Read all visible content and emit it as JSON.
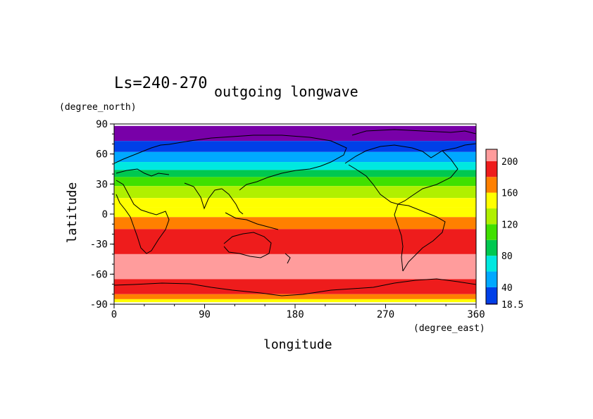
{
  "chart_data": {
    "type": "heatmap",
    "title": "outgoing longwave",
    "subtitle": "Ls=240-270",
    "xlabel": "longitude",
    "ylabel": "latitude",
    "x_unit": "(degree_east)",
    "y_unit": "(degree_north)",
    "xlim": [
      0,
      360
    ],
    "ylim": [
      -90,
      90
    ],
    "x_ticks": [
      "0",
      "90",
      "180",
      "270",
      "360"
    ],
    "y_ticks": [
      "90",
      "60",
      "30",
      "0",
      "-30",
      "-60",
      "-90"
    ],
    "colorbar": {
      "levels": [
        18.5,
        20,
        40,
        60,
        80,
        100,
        120,
        140,
        160,
        180,
        200,
        215
      ],
      "colors": [
        "#0000a8",
        "#0040e8",
        "#00a8ff",
        "#00e8e0",
        "#00c850",
        "#40e000",
        "#b0f000",
        "#ffff00",
        "#ff8000",
        "#ee1c1c",
        "#ff9c9c"
      ],
      "tick_labels": [
        "18.5",
        "40",
        "80",
        "120",
        "160",
        "200"
      ],
      "tick_values": [
        18.5,
        40,
        80,
        120,
        160,
        200
      ]
    },
    "zonal_bands": [
      {
        "lat_top": 88,
        "lat_bottom": 73,
        "value": 10
      },
      {
        "lat_top": 73,
        "lat_bottom": 62,
        "value": 25
      },
      {
        "lat_top": 62,
        "lat_bottom": 52,
        "value": 50
      },
      {
        "lat_top": 52,
        "lat_bottom": 44,
        "value": 70
      },
      {
        "lat_top": 44,
        "lat_bottom": 37,
        "value": 90
      },
      {
        "lat_top": 37,
        "lat_bottom": 28,
        "value": 110
      },
      {
        "lat_top": 28,
        "lat_bottom": 16,
        "value": 130
      },
      {
        "lat_top": 16,
        "lat_bottom": 7,
        "value": 150
      },
      {
        "lat_top": 7,
        "lat_bottom": -3,
        "value": 150
      },
      {
        "lat_top": -3,
        "lat_bottom": -15,
        "value": 170
      },
      {
        "lat_top": -15,
        "lat_bottom": -40,
        "value": 190
      },
      {
        "lat_top": -40,
        "lat_bottom": -65,
        "value": 205
      },
      {
        "lat_top": -65,
        "lat_bottom": -80,
        "value": 190
      },
      {
        "lat_top": -80,
        "lat_bottom": -85,
        "value": 170
      },
      {
        "lat_top": -85,
        "lat_bottom": -88,
        "value": 150
      }
    ],
    "colors": {
      "polar_purple": "#7800a8"
    }
  }
}
